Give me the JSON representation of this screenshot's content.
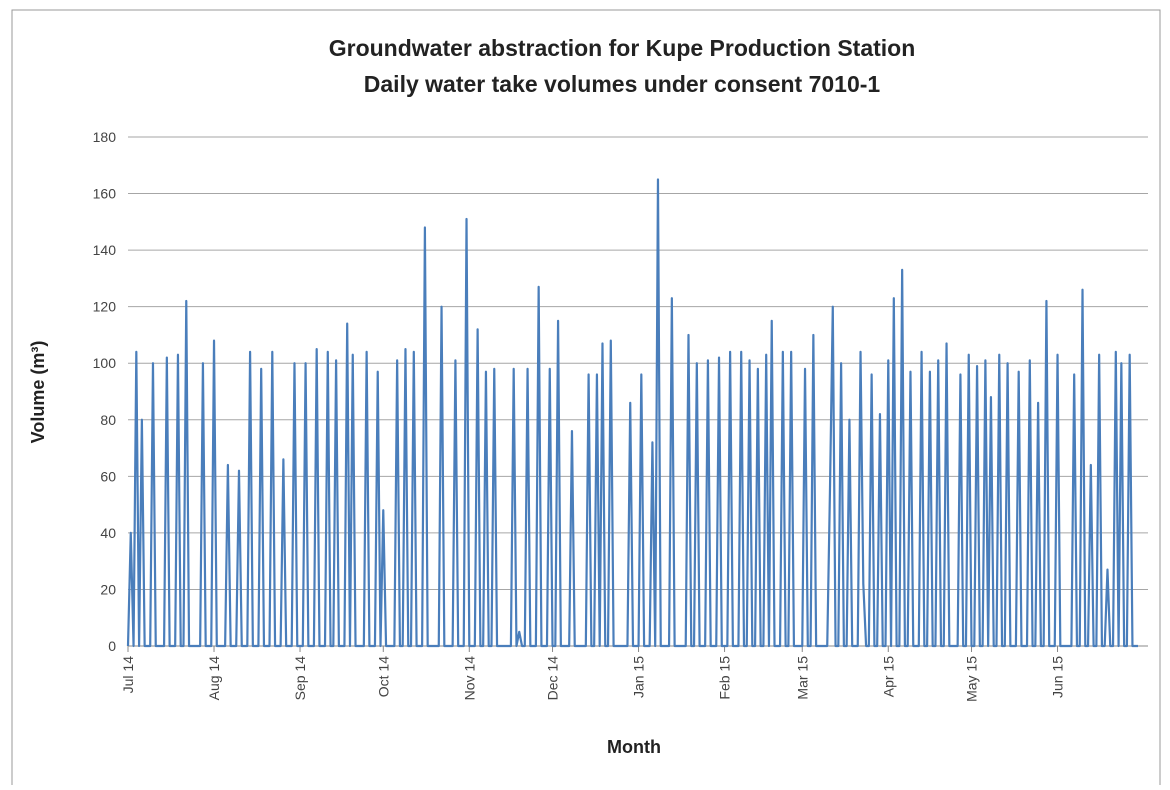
{
  "chart_data": {
    "type": "line",
    "title": "Groundwater abstraction for Kupe Production Station",
    "subtitle": "Daily water take volumes under consent 7010-1",
    "x_label": "Month",
    "y_label": "Volume (m³)",
    "ylim": [
      0,
      180
    ],
    "yticks": [
      0,
      20,
      40,
      60,
      80,
      100,
      120,
      140,
      160,
      180
    ],
    "grid": true,
    "categories": [
      "Jul 14",
      null,
      null,
      null,
      null,
      null,
      null,
      null,
      null,
      null,
      null,
      null,
      null,
      null,
      null,
      null,
      null,
      null,
      null,
      null,
      null,
      null,
      null,
      null,
      null,
      null,
      null,
      null,
      null,
      null,
      null,
      "Aug 14",
      null,
      null,
      null,
      null,
      null,
      null,
      null,
      null,
      null,
      null,
      null,
      null,
      null,
      null,
      null,
      null,
      null,
      null,
      null,
      null,
      null,
      null,
      null,
      null,
      null,
      null,
      null,
      null,
      null,
      null,
      "Sep 14",
      null,
      null,
      null,
      null,
      null,
      null,
      null,
      null,
      null,
      null,
      null,
      null,
      null,
      null,
      null,
      null,
      null,
      null,
      null,
      null,
      null,
      null,
      null,
      null,
      null,
      null,
      null,
      null,
      null,
      "Oct 14",
      null,
      null,
      null,
      null,
      null,
      null,
      null,
      null,
      null,
      null,
      null,
      null,
      null,
      null,
      null,
      null,
      null,
      null,
      null,
      null,
      null,
      null,
      null,
      null,
      null,
      null,
      null,
      null,
      null,
      null,
      "Nov 14",
      null,
      null,
      null,
      null,
      null,
      null,
      null,
      null,
      null,
      null,
      null,
      null,
      null,
      null,
      null,
      null,
      null,
      null,
      null,
      null,
      null,
      null,
      null,
      null,
      null,
      null,
      null,
      null,
      null,
      "Dec 14",
      null,
      null,
      null,
      null,
      null,
      null,
      null,
      null,
      null,
      null,
      null,
      null,
      null,
      null,
      null,
      null,
      null,
      null,
      null,
      null,
      null,
      null,
      null,
      null,
      null,
      null,
      null,
      null,
      null,
      null,
      "Jan 15",
      null,
      null,
      null,
      null,
      null,
      null,
      null,
      null,
      null,
      null,
      null,
      null,
      null,
      null,
      null,
      null,
      null,
      null,
      null,
      null,
      null,
      null,
      null,
      null,
      null,
      null,
      null,
      null,
      null,
      null,
      "Feb 15",
      null,
      null,
      null,
      null,
      null,
      null,
      null,
      null,
      null,
      null,
      null,
      null,
      null,
      null,
      null,
      null,
      null,
      null,
      null,
      null,
      null,
      null,
      null,
      null,
      null,
      null,
      null,
      "Mar 15",
      null,
      null,
      null,
      null,
      null,
      null,
      null,
      null,
      null,
      null,
      null,
      null,
      null,
      null,
      null,
      null,
      null,
      null,
      null,
      null,
      null,
      null,
      null,
      null,
      null,
      null,
      null,
      null,
      null,
      null,
      "Apr 15",
      null,
      null,
      null,
      null,
      null,
      null,
      null,
      null,
      null,
      null,
      null,
      null,
      null,
      null,
      null,
      null,
      null,
      null,
      null,
      null,
      null,
      null,
      null,
      null,
      null,
      null,
      null,
      null,
      null,
      "May 15",
      null,
      null,
      null,
      null,
      null,
      null,
      null,
      null,
      null,
      null,
      null,
      null,
      null,
      null,
      null,
      null,
      null,
      null,
      null,
      null,
      null,
      null,
      null,
      null,
      null,
      null,
      null,
      null,
      null,
      null,
      "Jun 15",
      null,
      null,
      null,
      null,
      null,
      null,
      null,
      null,
      null,
      null,
      null,
      null,
      null,
      null,
      null,
      null,
      null,
      null,
      null,
      null,
      null,
      null,
      null,
      null,
      null,
      null,
      null,
      null,
      null
    ],
    "series": [
      {
        "name": "Volume",
        "color": "#4a7ebb",
        "values": [
          0,
          40,
          0,
          104,
          0,
          80,
          0,
          0,
          0,
          100,
          0,
          0,
          0,
          0,
          102,
          0,
          0,
          0,
          103,
          0,
          0,
          122,
          0,
          0,
          0,
          0,
          0,
          100,
          0,
          0,
          0,
          108,
          0,
          0,
          0,
          0,
          64,
          0,
          0,
          0,
          62,
          0,
          0,
          0,
          104,
          0,
          0,
          0,
          98,
          0,
          0,
          0,
          104,
          0,
          0,
          0,
          66,
          0,
          0,
          0,
          100,
          0,
          0,
          0,
          100,
          0,
          0,
          0,
          105,
          0,
          0,
          0,
          104,
          0,
          0,
          101,
          0,
          0,
          0,
          114,
          0,
          103,
          0,
          0,
          0,
          0,
          104,
          0,
          0,
          0,
          97,
          0,
          48,
          0,
          0,
          0,
          0,
          101,
          0,
          0,
          105,
          0,
          0,
          104,
          0,
          0,
          0,
          148,
          0,
          0,
          0,
          0,
          0,
          120,
          0,
          0,
          0,
          0,
          101,
          0,
          0,
          0,
          151,
          0,
          0,
          0,
          112,
          0,
          0,
          97,
          0,
          0,
          98,
          0,
          0,
          0,
          0,
          0,
          0,
          98,
          0,
          5,
          0,
          0,
          98,
          0,
          0,
          0,
          127,
          0,
          0,
          0,
          98,
          0,
          0,
          115,
          0,
          0,
          0,
          0,
          76,
          0,
          0,
          0,
          0,
          0,
          96,
          0,
          0,
          96,
          0,
          107,
          0,
          0,
          108,
          0,
          0,
          0,
          0,
          0,
          0,
          86,
          0,
          0,
          0,
          96,
          0,
          0,
          0,
          72,
          0,
          165,
          0,
          0,
          0,
          0,
          123,
          0,
          0,
          0,
          0,
          0,
          110,
          0,
          0,
          100,
          0,
          0,
          0,
          101,
          0,
          0,
          0,
          102,
          0,
          0,
          0,
          104,
          0,
          0,
          0,
          104,
          0,
          0,
          101,
          0,
          0,
          98,
          0,
          0,
          103,
          0,
          115,
          0,
          0,
          0,
          104,
          0,
          0,
          104,
          0,
          0,
          0,
          0,
          98,
          0,
          0,
          110,
          0,
          0,
          0,
          0,
          0,
          56,
          120,
          0,
          0,
          100,
          0,
          0,
          80,
          0,
          0,
          0,
          104,
          22,
          0,
          0,
          96,
          0,
          0,
          82,
          0,
          0,
          101,
          0,
          123,
          0,
          0,
          133,
          0,
          0,
          97,
          0,
          0,
          0,
          104,
          0,
          0,
          97,
          0,
          0,
          101,
          0,
          0,
          107,
          0,
          0,
          0,
          0,
          96,
          0,
          0,
          103,
          0,
          0,
          99,
          0,
          0,
          101,
          0,
          88,
          0,
          0,
          103,
          0,
          0,
          100,
          0,
          0,
          0,
          97,
          0,
          0,
          0,
          101,
          0,
          0,
          86,
          0,
          0,
          122,
          0,
          0,
          0,
          103,
          0,
          0,
          0,
          0,
          0,
          96,
          0,
          0,
          126,
          0,
          0,
          64,
          0,
          0,
          103,
          0,
          0,
          27,
          0,
          0,
          104,
          0,
          100,
          0,
          0,
          103,
          0,
          0,
          0
        ]
      }
    ]
  }
}
